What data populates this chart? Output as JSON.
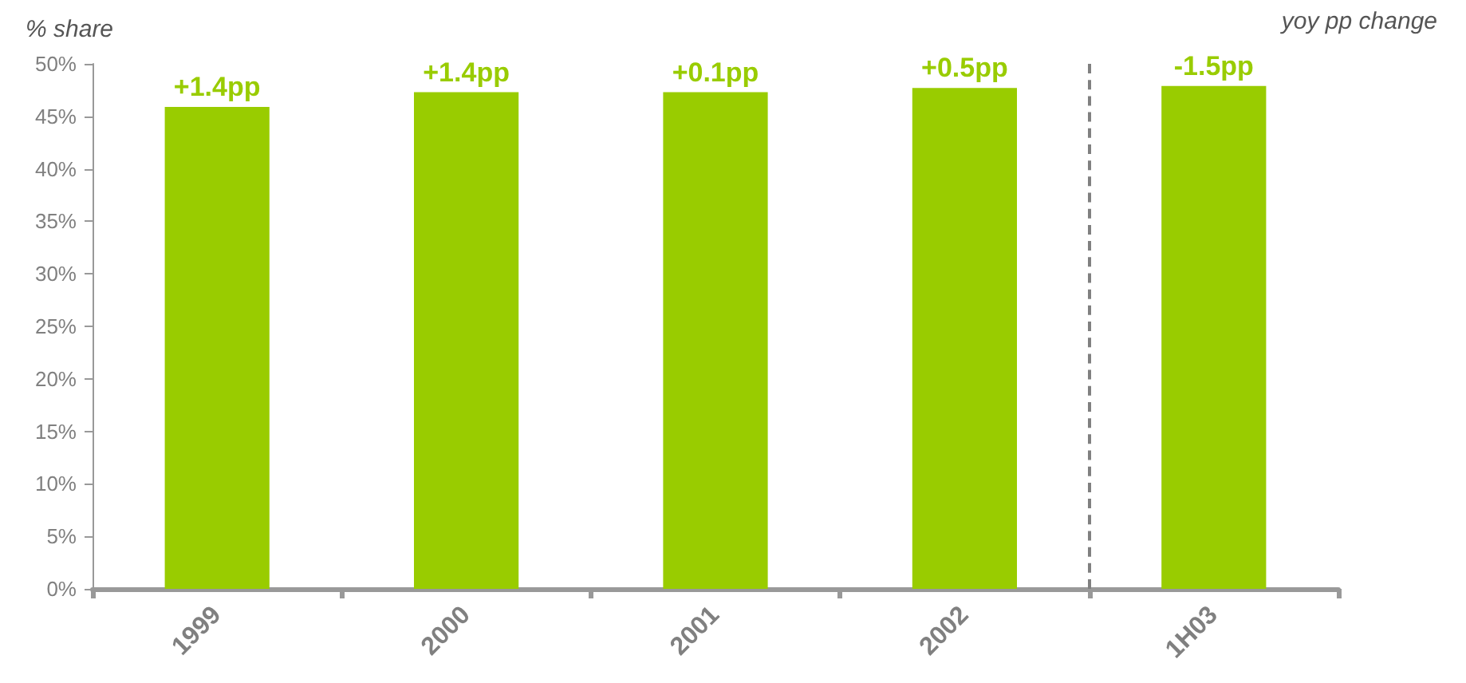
{
  "chart_data": {
    "type": "bar",
    "ylabel": "% share",
    "annotations": [
      "yoy pp change",
      {
        "text": "+1.4pp",
        "x": "1999",
        "y": 45.9
      },
      {
        "text": "+1.4pp",
        "x": "2000",
        "y": 47.3
      },
      {
        "text": "+0.1pp",
        "x": "2001",
        "y": 47.3
      },
      {
        "text": "+0.5pp",
        "x": "2002",
        "y": 47.7
      },
      {
        "text": "-1.5pp",
        "x": "1H03",
        "y": 47.9
      }
    ],
    "categories": [
      "1999",
      "2000",
      "2001",
      "2002",
      "1H03"
    ],
    "values": [
      45.9,
      47.3,
      47.3,
      47.7,
      47.9
    ],
    "color": "#99cc00",
    "ylim": [
      0,
      50
    ],
    "yticks": [
      {
        "value": 0,
        "label": "0%"
      },
      {
        "value": 5,
        "label": "5%"
      },
      {
        "value": 10,
        "label": "10%"
      },
      {
        "value": 15,
        "label": "15%"
      },
      {
        "value": 20,
        "label": "20%"
      },
      {
        "value": 25,
        "label": "25%"
      },
      {
        "value": 30,
        "label": "30%"
      },
      {
        "value": 35,
        "label": "35%"
      },
      {
        "value": 40,
        "label": "40%"
      },
      {
        "value": 45,
        "label": "45%"
      },
      {
        "value": 50,
        "label": "50%"
      }
    ],
    "grid": false
  }
}
